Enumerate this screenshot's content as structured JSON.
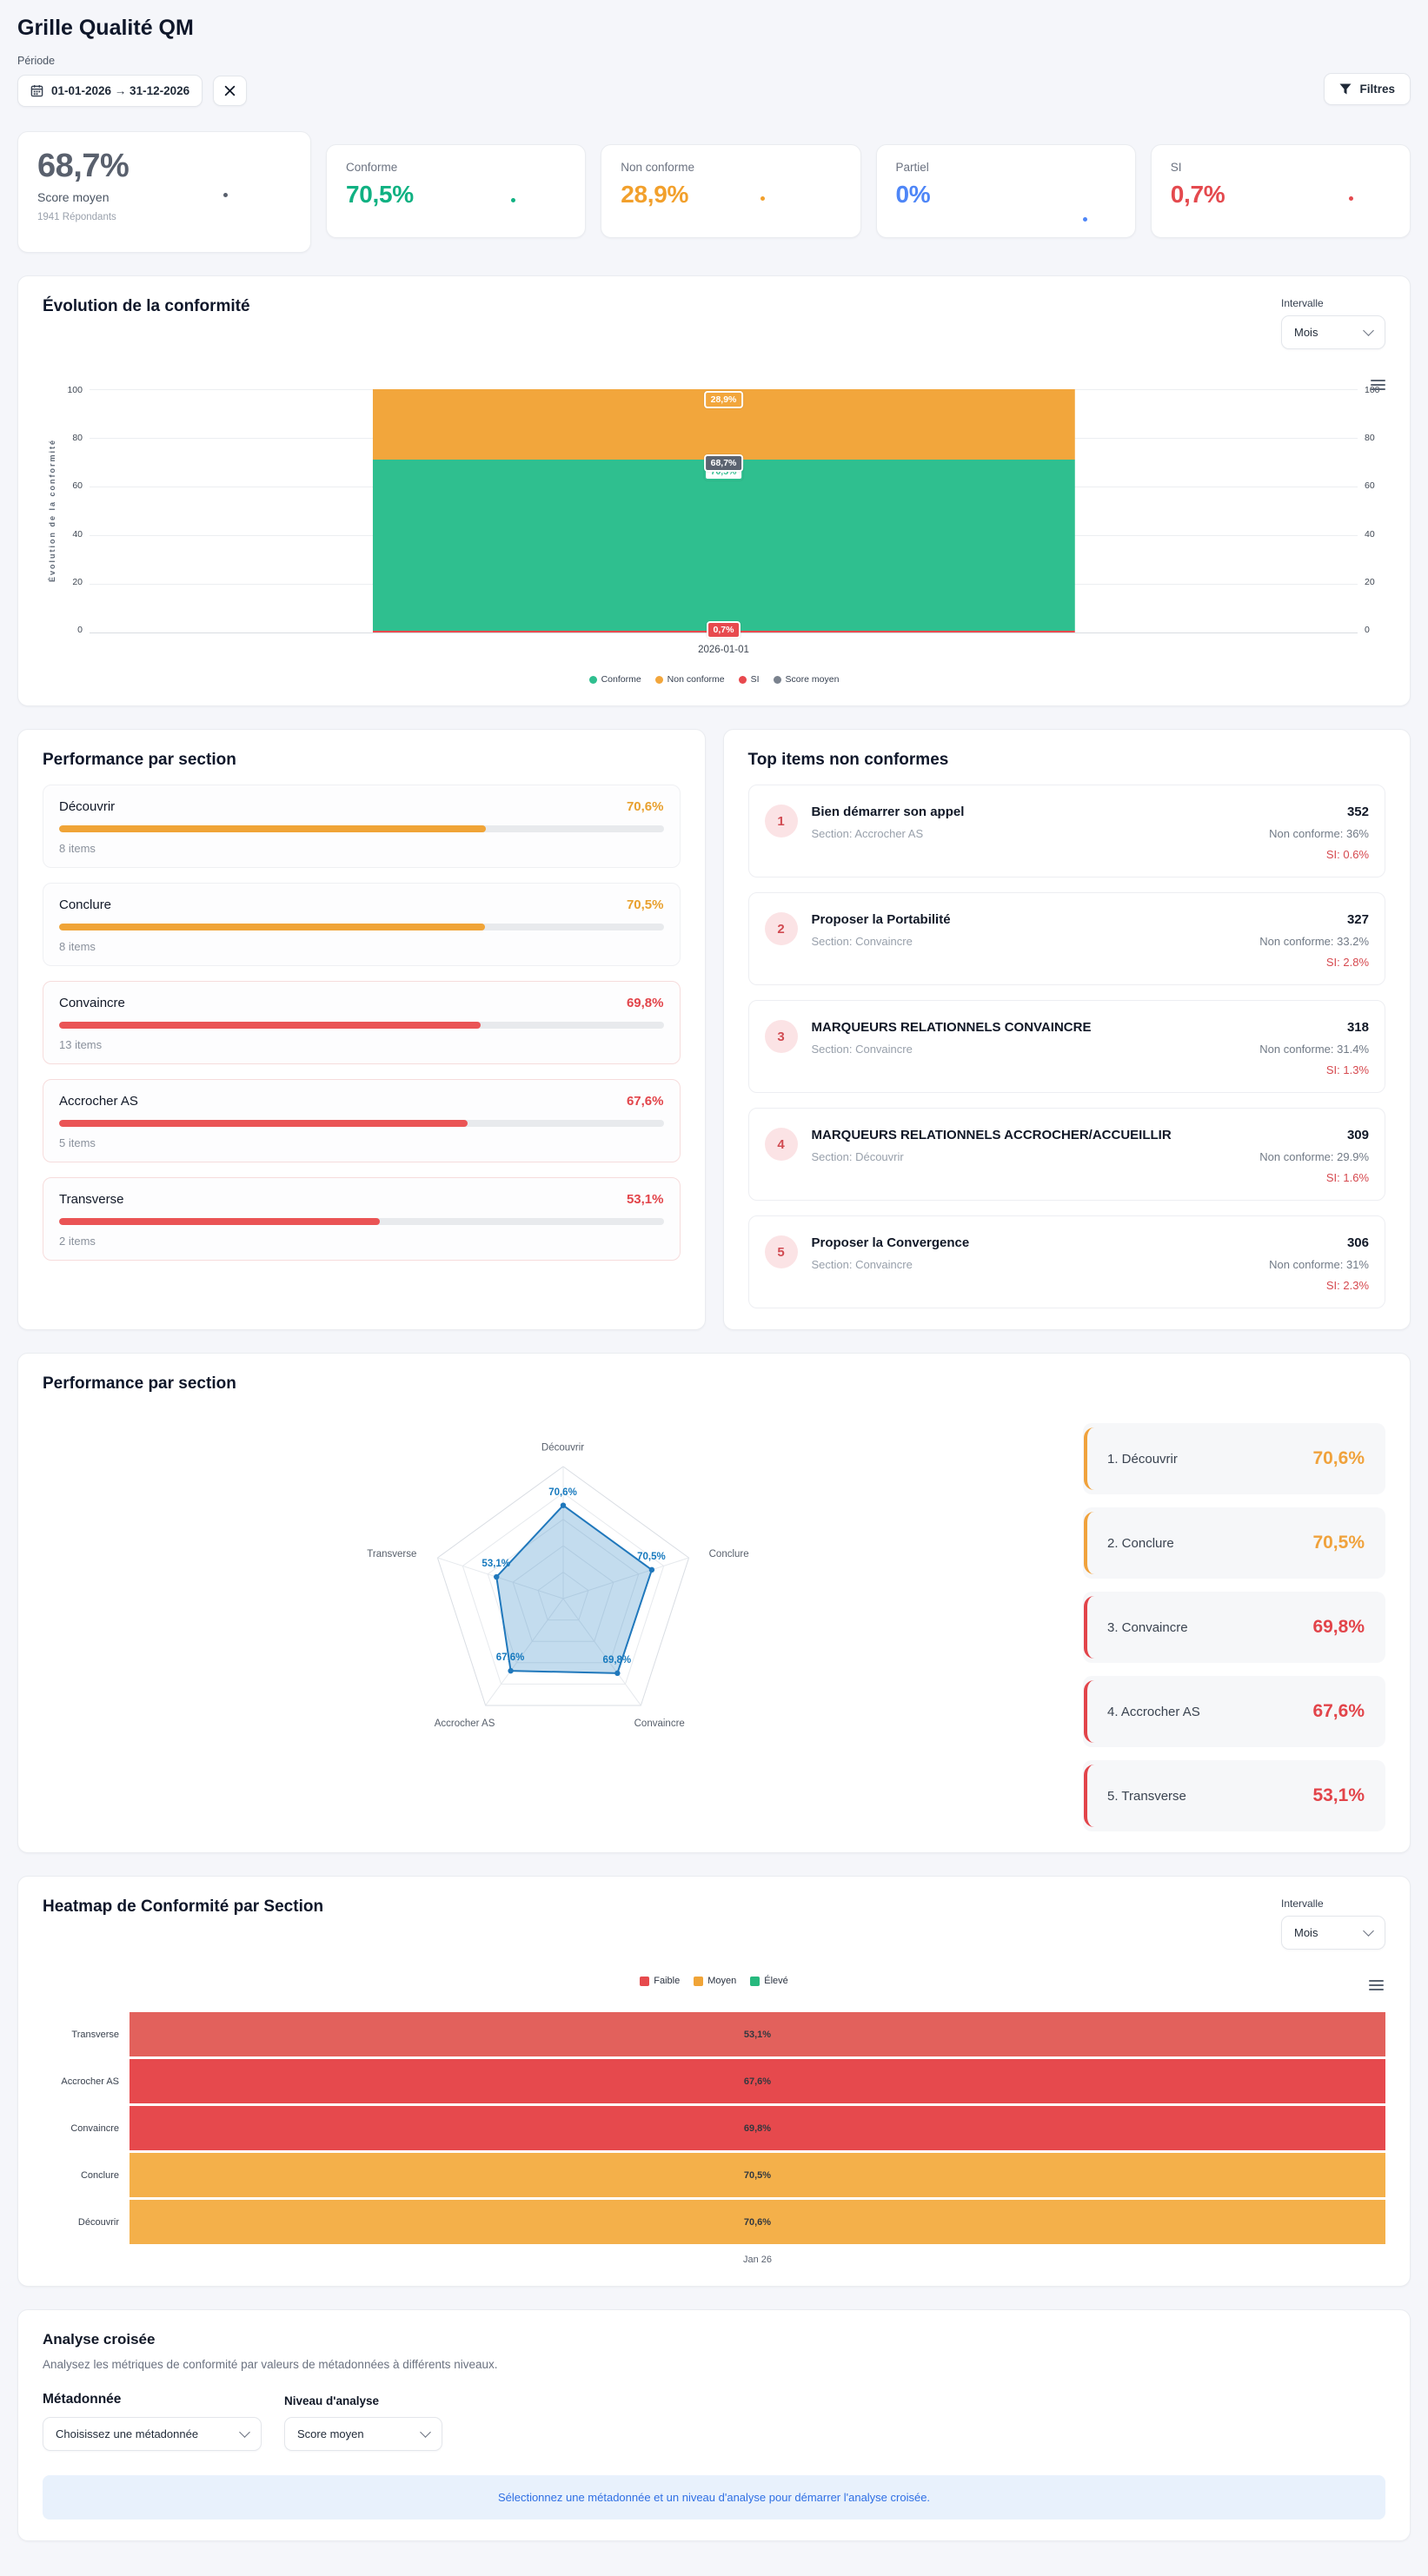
{
  "header": {
    "title": "Grille Qualité QM",
    "period_label": "Période",
    "date_range": "01-01-2026 → 31-12-2026",
    "filters_label": "Filtres"
  },
  "kpis": {
    "score": {
      "value": "68,7%",
      "label": "Score moyen",
      "sublabel": "1941 Répondants",
      "color": "#59606D"
    },
    "cards": [
      {
        "label": "Conforme",
        "value": "70,5%",
        "color": "#10B182"
      },
      {
        "label": "Non conforme",
        "value": "28,9%",
        "color": "#F2A02C"
      },
      {
        "label": "Partiel",
        "value": "0%",
        "color": "#4E86F7"
      },
      {
        "label": "SI",
        "value": "0,7%",
        "color": "#E4494E"
      }
    ]
  },
  "evolution": {
    "title": "Évolution de la conformité",
    "interval_label": "Intervalle",
    "interval_value": "Mois",
    "y_axis_label": "Évolution de la conformité",
    "y_ticks": [
      "100",
      "80",
      "60",
      "40",
      "20",
      "0"
    ],
    "x_tick": "2026-01-01",
    "labels": {
      "non_conforme": "28,9%",
      "score": "68,7%",
      "conforme": "70,5%",
      "si": "0,7%"
    },
    "legend": [
      {
        "label": "Conforme",
        "color": "#2FBF8F"
      },
      {
        "label": "Non conforme",
        "color": "#F2A63C"
      },
      {
        "label": "SI",
        "color": "#E8494E"
      },
      {
        "label": "Score moyen",
        "color": "#7A828E"
      }
    ]
  },
  "performance": {
    "title": "Performance par section",
    "items": [
      {
        "name": "Découvrir",
        "value": "70,6%",
        "pct": 70.6,
        "count_label": "8 items",
        "color": "#E8A02E",
        "bar": "#F0A437",
        "border": "#EFF0F3"
      },
      {
        "name": "Conclure",
        "value": "70,5%",
        "pct": 70.5,
        "count_label": "8 items",
        "color": "#E8A02E",
        "bar": "#F0A437",
        "border": "#EFF0F3"
      },
      {
        "name": "Convaincre",
        "value": "69,8%",
        "pct": 69.8,
        "count_label": "13 items",
        "color": "#E2444A",
        "bar": "#EA5455",
        "border": "#F6DCDC"
      },
      {
        "name": "Accrocher AS",
        "value": "67,6%",
        "pct": 67.6,
        "count_label": "5 items",
        "color": "#E2444A",
        "bar": "#EA5455",
        "border": "#F6DCDC"
      },
      {
        "name": "Transverse",
        "value": "53,1%",
        "pct": 53.1,
        "count_label": "2 items",
        "color": "#E2444A",
        "bar": "#EA5455",
        "border": "#F6DCDC"
      }
    ]
  },
  "top_items": {
    "title": "Top items non conformes",
    "items": [
      {
        "rank": "1",
        "name": "Bien démarrer son appel",
        "section": "Section: Accrocher AS",
        "count": "352",
        "non_conforme": "Non conforme: 36%",
        "si": "SI: 0.6%"
      },
      {
        "rank": "2",
        "name": "Proposer la Portabilité",
        "section": "Section: Convaincre",
        "count": "327",
        "non_conforme": "Non conforme: 33.2%",
        "si": "SI: 2.8%"
      },
      {
        "rank": "3",
        "name": "MARQUEURS RELATIONNELS CONVAINCRE",
        "section": "Section: Convaincre",
        "count": "318",
        "non_conforme": "Non conforme: 31.4%",
        "si": "SI: 1.3%"
      },
      {
        "rank": "4",
        "name": "MARQUEURS RELATIONNELS ACCROCHER/ACCUEILLIR",
        "section": "Section: Découvrir",
        "count": "309",
        "non_conforme": "Non conforme: 29.9%",
        "si": "SI: 1.6%"
      },
      {
        "rank": "5",
        "name": "Proposer la Convergence",
        "section": "Section: Convaincre",
        "count": "306",
        "non_conforme": "Non conforme: 31%",
        "si": "SI: 2.3%"
      }
    ]
  },
  "radar": {
    "title": "Performance par section",
    "axes": [
      "Découvrir",
      "Conclure",
      "Convaincre",
      "Accrocher AS",
      "Transverse"
    ],
    "value_labels": [
      "70,6%",
      "70,5%",
      "69,8%",
      "67,6%",
      "53,1%"
    ],
    "stats": [
      {
        "label": "1. Découvrir",
        "value": "70,6%",
        "color": "#F0A23C"
      },
      {
        "label": "2. Conclure",
        "value": "70,5%",
        "color": "#F0A23C"
      },
      {
        "label": "3. Convaincre",
        "value": "69,8%",
        "color": "#E2444A"
      },
      {
        "label": "4. Accrocher AS",
        "value": "67,6%",
        "color": "#E2444A"
      },
      {
        "label": "5. Transverse",
        "value": "53,1%",
        "color": "#E2444A"
      }
    ]
  },
  "heatmap": {
    "title": "Heatmap de Conformité par Section",
    "interval_label": "Intervalle",
    "interval_value": "Mois",
    "legend": [
      {
        "label": "Faible",
        "color": "#E64A4D"
      },
      {
        "label": "Moyen",
        "color": "#F0A437"
      },
      {
        "label": "Élevé",
        "color": "#27B97E"
      }
    ],
    "rows": [
      {
        "label": "Transverse",
        "value": "53,1%",
        "color": "#E2615C"
      },
      {
        "label": "Accrocher AS",
        "value": "67,6%",
        "color": "#E6494D"
      },
      {
        "label": "Convaincre",
        "value": "69,8%",
        "color": "#E6494D"
      },
      {
        "label": "Conclure",
        "value": "70,5%",
        "color": "#F4B04A"
      },
      {
        "label": "Découvrir",
        "value": "70,6%",
        "color": "#F4B04A"
      }
    ],
    "x_tick": "Jan 26"
  },
  "cross": {
    "title": "Analyse croisée",
    "description": "Analysez les métriques de conformité par valeurs de métadonnées à différents niveaux.",
    "meta_label": "Métadonnée",
    "meta_value": "Choisissez une métadonnée",
    "level_label": "Niveau d'analyse",
    "level_value": "Score moyen",
    "info": "Sélectionnez une métadonnée et un niveau d'analyse pour démarrer l'analyse croisée."
  },
  "chart_data": [
    {
      "type": "bar",
      "stacked": true,
      "title": "Évolution de la conformité",
      "x": [
        "2026-01-01"
      ],
      "series": [
        {
          "name": "SI",
          "values": [
            0.7
          ],
          "color": "#E8494E"
        },
        {
          "name": "Conforme",
          "values": [
            70.5
          ],
          "color": "#2FBF8F"
        },
        {
          "name": "Non conforme",
          "values": [
            28.9
          ],
          "color": "#F2A63C"
        }
      ],
      "marker": {
        "name": "Score moyen",
        "values": [
          68.7
        ],
        "color": "#5B6370"
      },
      "ylim": [
        0,
        100
      ],
      "yticks": [
        0,
        20,
        40,
        60,
        80,
        100
      ],
      "legend_position": "bottom"
    },
    {
      "type": "radar",
      "axes": [
        "Découvrir",
        "Conclure",
        "Convaincre",
        "Accrocher AS",
        "Transverse"
      ],
      "values": [
        70.6,
        70.5,
        69.8,
        67.6,
        53.1
      ],
      "max": 100,
      "color": "#2078BC"
    },
    {
      "type": "heatmap",
      "rows": [
        "Transverse",
        "Accrocher AS",
        "Convaincre",
        "Conclure",
        "Découvrir"
      ],
      "columns": [
        "Jan 26"
      ],
      "values": [
        [
          53.1
        ],
        [
          67.6
        ],
        [
          69.8
        ],
        [
          70.5
        ],
        [
          70.6
        ]
      ],
      "legend": [
        "Faible",
        "Moyen",
        "Élevé"
      ]
    }
  ]
}
